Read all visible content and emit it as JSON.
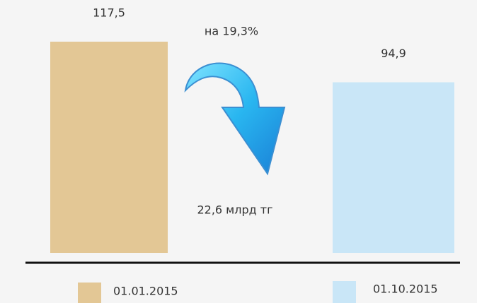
{
  "chart_data": {
    "type": "bar",
    "categories": [
      "01.01.2015",
      "01.10.2015"
    ],
    "values": [
      117.5,
      94.9
    ],
    "value_labels": [
      "117,5",
      "94,9"
    ],
    "colors": [
      "#e3c795",
      "#c9e6f7"
    ],
    "annotations": [
      "на 19,3%",
      "22,6 млрд тг"
    ]
  }
}
